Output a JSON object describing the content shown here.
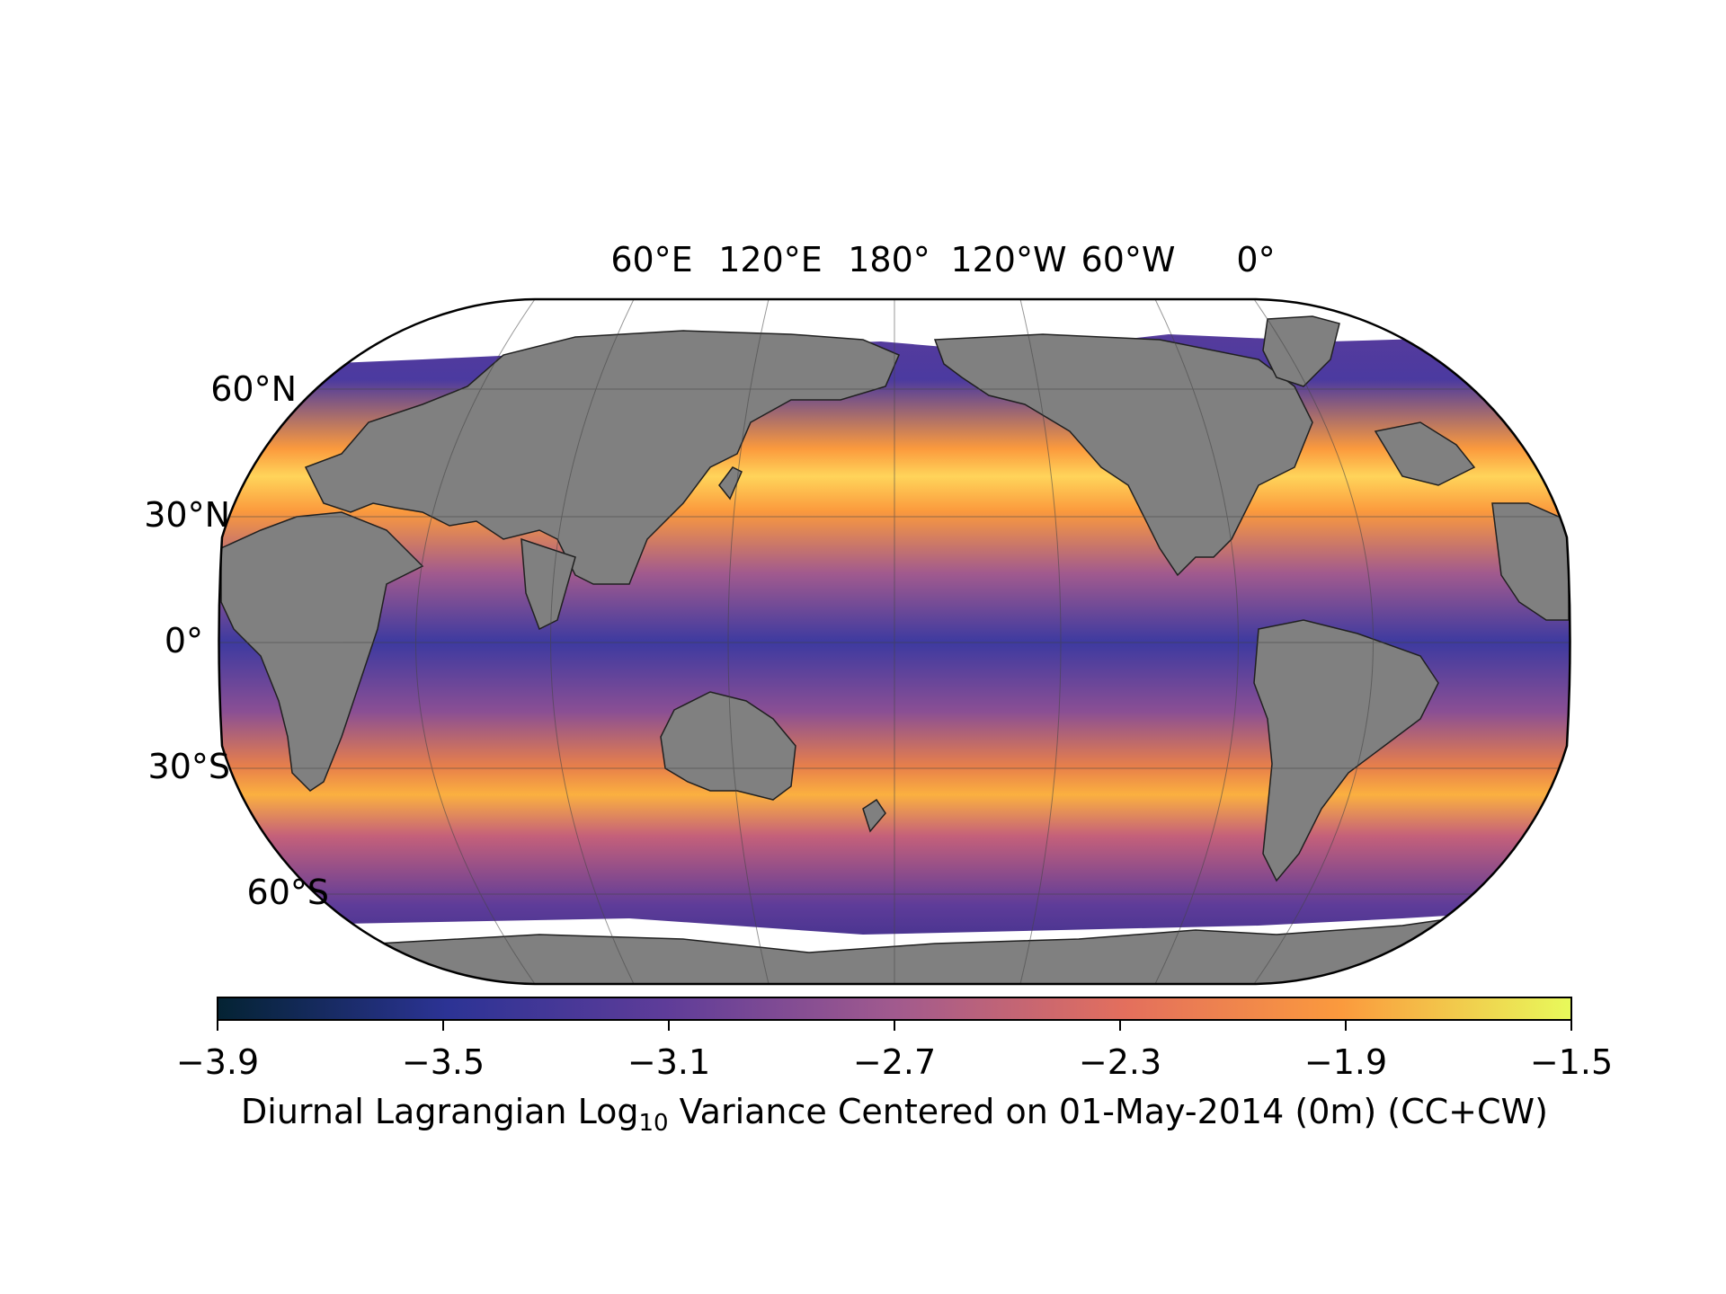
{
  "map": {
    "projection": "Robinson",
    "central_longitude": "180°",
    "lon_labels": [
      "60°E",
      "120°E",
      "180°",
      "120°W",
      "60°W",
      "0°"
    ],
    "lat_labels": [
      "60°N",
      "30°N",
      "0°",
      "30°S",
      "60°S"
    ],
    "land_color": "#808080",
    "missing_color": "#ffffff",
    "gridlines": true
  },
  "colorbar": {
    "ticks": [
      "−3.9",
      "−3.5",
      "−3.1",
      "−2.7",
      "−2.3",
      "−1.9",
      "−1.5"
    ],
    "range": [
      -3.9,
      -1.5
    ],
    "colormap": "thermal",
    "colors": [
      "#042333",
      "#2c3395",
      "#5e3c99",
      "#a15a8e",
      "#e36f5d",
      "#fb9a3d",
      "#e8fa5b"
    ],
    "label_main": "Diurnal Lagrangian Log",
    "label_sub": "10",
    "label_rest": " Variance Centered on 01-May-2014 (0m) (CC+CW)"
  }
}
